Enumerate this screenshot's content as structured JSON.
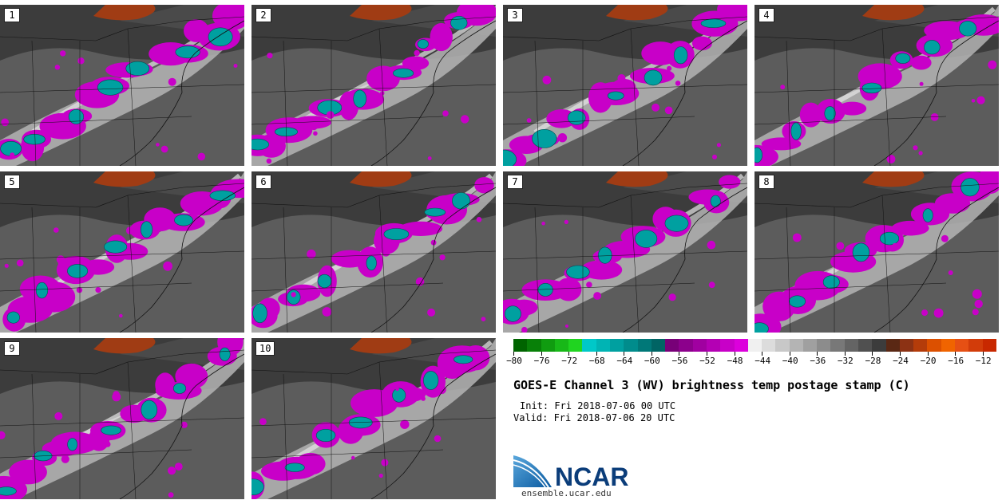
{
  "panels": [
    {
      "label": "1"
    },
    {
      "label": "2"
    },
    {
      "label": "3"
    },
    {
      "label": "4"
    },
    {
      "label": "5"
    },
    {
      "label": "6"
    },
    {
      "label": "7"
    },
    {
      "label": "8"
    },
    {
      "label": "9"
    },
    {
      "label": "10"
    }
  ],
  "colorbar": {
    "colors": [
      "#006400",
      "#088008",
      "#109c10",
      "#18b818",
      "#20d420",
      "#00c8c8",
      "#00b4b4",
      "#00a0a0",
      "#008c8c",
      "#007878",
      "#006464",
      "#780078",
      "#8c008c",
      "#a000a0",
      "#b400b4",
      "#c800c8",
      "#dc00dc",
      "#f0f0f0",
      "#dcdcdc",
      "#c8c8c8",
      "#b4b4b4",
      "#a0a0a0",
      "#8c8c8c",
      "#787878",
      "#646464",
      "#505050",
      "#3c3c3c",
      "#5a2814",
      "#8c3214",
      "#b43c0a",
      "#dc5000",
      "#f06400",
      "#e65014",
      "#d23c0a",
      "#c82800"
    ],
    "tick_labels": [
      "−80",
      "−76",
      "−72",
      "−68",
      "−64",
      "−60",
      "−56",
      "−52",
      "−48",
      "−44",
      "−40",
      "−36",
      "−32",
      "−28",
      "−24",
      "−20",
      "−16",
      "−12"
    ]
  },
  "title": "GOES-E Channel 3 (WV) brightness temp postage stamp (C)",
  "init_text": "Init: Fri 2018-07-06 00 UTC",
  "valid_text": "Valid: Fri 2018-07-06 20 UTC",
  "logo_text": "NCAR",
  "logo_url": "ensemble.ucar.edu"
}
